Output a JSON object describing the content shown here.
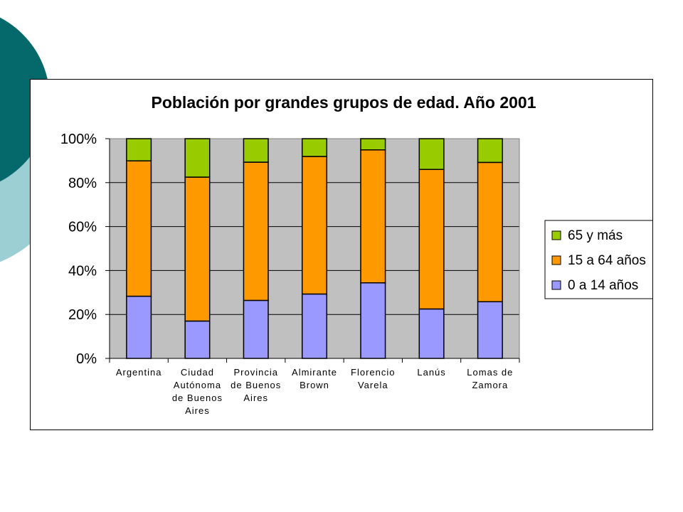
{
  "colors": {
    "slide_teal_dark": "#05696b",
    "slide_teal_light": "#9ccfd3",
    "plot_bg": "#c0c0c0",
    "series": [
      "#9999ff",
      "#ff9900",
      "#99cc00"
    ]
  },
  "chart_data": {
    "type": "bar",
    "stacked": true,
    "percent": true,
    "title": "Población por grandes grupos de edad. Año 2001",
    "ylim": [
      0,
      100
    ],
    "yticks": [
      "0%",
      "20%",
      "40%",
      "60%",
      "80%",
      "100%"
    ],
    "grid": true,
    "legend_position": "right",
    "categories": [
      [
        "Argentina"
      ],
      [
        "Ciudad",
        "Autónoma",
        "de Buenos",
        "Aires"
      ],
      [
        "Provincia",
        "de Buenos",
        "Aires"
      ],
      [
        "Almirante",
        "Brown"
      ],
      [
        "Florencio",
        "Varela"
      ],
      [
        "Lanús"
      ],
      [
        "Lomas de",
        "Zamora"
      ]
    ],
    "series": [
      {
        "name": "0 a 14 años",
        "values": [
          28.3,
          17.0,
          26.4,
          29.3,
          34.4,
          22.5,
          25.8
        ]
      },
      {
        "name": "15 a 64 años",
        "values": [
          61.6,
          65.5,
          62.9,
          62.6,
          60.5,
          63.5,
          63.4
        ]
      },
      {
        "name": "65 y más",
        "values": [
          10.1,
          17.5,
          10.7,
          8.1,
          5.1,
          14.0,
          10.8
        ]
      }
    ]
  }
}
